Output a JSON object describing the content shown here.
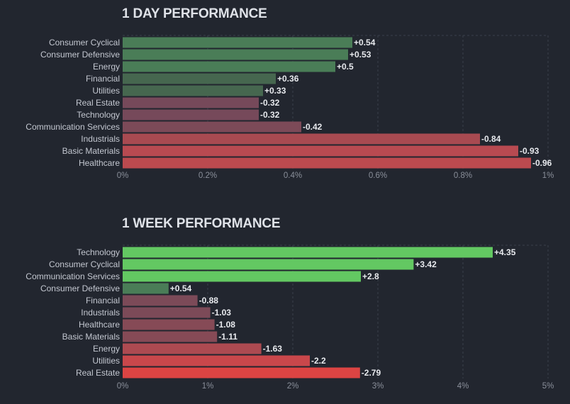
{
  "chart_data": [
    {
      "type": "bar",
      "orientation": "horizontal",
      "title": "1 DAY PERFORMANCE",
      "categories": [
        "Consumer Cyclical",
        "Consumer Defensive",
        "Energy",
        "Financial",
        "Utilities",
        "Real Estate",
        "Technology",
        "Communication Services",
        "Industrials",
        "Basic Materials",
        "Healthcare"
      ],
      "values": [
        0.54,
        0.53,
        0.5,
        0.36,
        0.33,
        -0.32,
        -0.32,
        -0.42,
        -0.84,
        -0.93,
        -0.96
      ],
      "value_labels": [
        "+0.54",
        "+0.53",
        "+0.5",
        "+0.36",
        "+0.33",
        "-0.32",
        "-0.32",
        "-0.42",
        "-0.84",
        "-0.93",
        "-0.96"
      ],
      "bar_colors": [
        "#4a7d57",
        "#4a7d57",
        "#4a7d57",
        "#46674f",
        "#46674f",
        "#76495a",
        "#76495a",
        "#7c4a58",
        "#a84a51",
        "#b84a51",
        "#bb4a4f"
      ],
      "xlim": [
        0,
        1
      ],
      "xticks": [
        "0%",
        "0.2%",
        "0.4%",
        "0.6%",
        "0.8%",
        "1%"
      ],
      "xlabel": "",
      "ylabel": "",
      "grid": true
    },
    {
      "type": "bar",
      "orientation": "horizontal",
      "title": "1 WEEK PERFORMANCE",
      "categories": [
        "Technology",
        "Consumer Cyclical",
        "Communication Services",
        "Consumer Defensive",
        "Financial",
        "Industrials",
        "Healthcare",
        "Basic Materials",
        "Energy",
        "Utilities",
        "Real Estate"
      ],
      "values": [
        4.35,
        3.42,
        2.8,
        0.54,
        -0.88,
        -1.03,
        -1.08,
        -1.11,
        -1.63,
        -2.2,
        -2.79
      ],
      "value_labels": [
        "+4.35",
        "+3.42",
        "+2.8",
        "+0.54",
        "-0.88",
        "-1.03",
        "-1.08",
        "-1.11",
        "-1.63",
        "-2.2",
        "-2.79"
      ],
      "bar_colors": [
        "#63c862",
        "#63c862",
        "#63c862",
        "#4a7d57",
        "#7c4a58",
        "#7c4a58",
        "#864a56",
        "#864a56",
        "#ad4a51",
        "#c9474b",
        "#dc4443"
      ],
      "xlim": [
        0,
        5
      ],
      "xticks": [
        "0%",
        "1%",
        "2%",
        "3%",
        "4%",
        "5%"
      ],
      "xlabel": "",
      "ylabel": "",
      "grid": true
    }
  ]
}
